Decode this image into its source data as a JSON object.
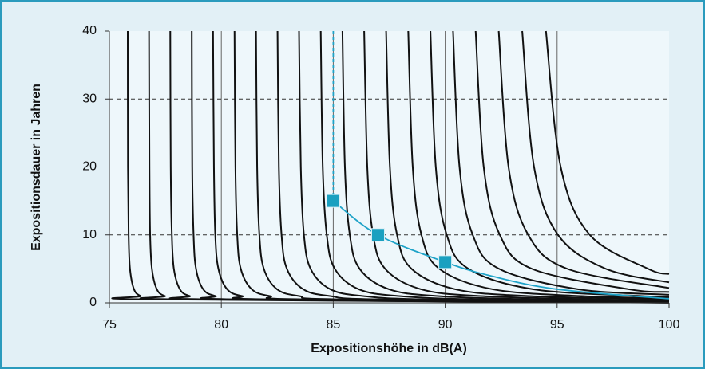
{
  "chart_data": {
    "type": "line",
    "xlabel": "Expositionshöhe in dB(A)",
    "ylabel": "Expositionsdauer in Jahren",
    "xlim": [
      75,
      100
    ],
    "ylim": [
      0,
      40
    ],
    "xticks": [
      75,
      80,
      85,
      90,
      95,
      100
    ],
    "yticks": [
      0,
      10,
      20,
      30,
      40
    ],
    "grid": true,
    "series": [
      {
        "color": "#111111",
        "x": [
          75.82,
          75.83,
          75.86,
          75.92,
          76.1,
          76.4,
          77.0,
          100
        ],
        "values": [
          40,
          20,
          10,
          5,
          2,
          1,
          0.5,
          0.025
        ]
      },
      {
        "color": "#111111",
        "x": [
          76.77,
          76.79,
          76.82,
          76.9,
          77.12,
          77.48,
          78.21,
          100
        ],
        "values": [
          40,
          20,
          10,
          5,
          2,
          1,
          0.5,
          0.031
        ]
      },
      {
        "color": "#111111",
        "x": [
          77.72,
          77.74,
          77.79,
          77.88,
          78.15,
          78.59,
          79.49,
          100
        ],
        "values": [
          40,
          20,
          10,
          5,
          2,
          1,
          0.5,
          0.04
        ]
      },
      {
        "color": "#111111",
        "x": [
          78.68,
          78.7,
          78.76,
          78.87,
          79.19,
          79.74,
          80.83,
          100
        ],
        "values": [
          40,
          20,
          10,
          5,
          2,
          1,
          0.5,
          0.051
        ]
      },
      {
        "color": "#111111",
        "x": [
          79.63,
          79.67,
          79.73,
          79.87,
          80.26,
          80.93,
          82.26,
          100
        ],
        "values": [
          40,
          20,
          10,
          5,
          2,
          1,
          0.5,
          0.065
        ]
      },
      {
        "color": "#111111",
        "x": [
          80.59,
          80.63,
          80.71,
          80.87,
          81.36,
          82.17,
          83.79,
          100
        ],
        "values": [
          40,
          20,
          10,
          5,
          2,
          1,
          0.5,
          0.083
        ]
      },
      {
        "color": "#111111",
        "x": [
          81.55,
          81.6,
          81.7,
          81.9,
          82.49,
          83.48,
          85.45,
          100
        ],
        "values": [
          40,
          20,
          10,
          5,
          2,
          1,
          0.5,
          0.107
        ]
      },
      {
        "color": "#111111",
        "x": [
          82.51,
          82.57,
          82.69,
          82.93,
          83.66,
          84.86,
          87.27,
          100
        ],
        "values": [
          40,
          20,
          10,
          5,
          2,
          1,
          0.5,
          0.137
        ]
      },
      {
        "color": "#111111",
        "x": [
          83.47,
          83.55,
          83.69,
          83.99,
          84.87,
          86.34,
          89.28,
          100
        ],
        "values": [
          40,
          20,
          10,
          5,
          2,
          1,
          0.5,
          0.177
        ]
      },
      {
        "color": "#111111",
        "x": [
          84.44,
          84.53,
          84.71,
          85.07,
          86.14,
          87.94,
          91.52,
          100
        ],
        "values": [
          40,
          20,
          10,
          5,
          2,
          1,
          0.5,
          0.229
        ]
      },
      {
        "color": "#111111",
        "x": [
          85.41,
          85.52,
          85.74,
          86.18,
          87.49,
          89.67,
          94.05,
          100
        ],
        "values": [
          40,
          20,
          10,
          5,
          2,
          1,
          0.5,
          0.297
        ]
      },
      {
        "color": "#111111",
        "x": [
          86.38,
          86.52,
          86.78,
          87.32,
          88.92,
          91.58,
          96.92,
          100
        ],
        "values": [
          40,
          20,
          10,
          5,
          2,
          1,
          0.5,
          0.388
        ]
      },
      {
        "color": "#111111",
        "x": [
          87.36,
          87.53,
          87.85,
          88.5,
          90.45,
          93.71,
          100
        ],
        "values": [
          40,
          20,
          10,
          5,
          2,
          1,
          0.508
        ]
      },
      {
        "color": "#111111",
        "x": [
          88.35,
          88.55,
          88.94,
          89.74,
          92.12,
          96.08,
          100
        ],
        "values": [
          40,
          20,
          10,
          5,
          2,
          1,
          0.67
        ]
      },
      {
        "color": "#111111",
        "x": [
          89.34,
          89.58,
          90.07,
          91.04,
          93.94,
          98.78,
          100
        ],
        "values": [
          40,
          20,
          10,
          5,
          2,
          1,
          0.888
        ]
      },
      {
        "color": "#111111",
        "x": [
          90.35,
          90.64,
          91.23,
          92.41,
          95.95,
          100
        ],
        "values": [
          40,
          20,
          10,
          5,
          2,
          1.186
        ]
      },
      {
        "color": "#111111",
        "x": [
          91.36,
          91.72,
          92.44,
          93.88,
          98.2,
          100
        ],
        "values": [
          40,
          20,
          10,
          5,
          2,
          1.6
        ]
      },
      {
        "color": "#111111",
        "x": [
          92.39,
          92.83,
          93.71,
          95.46,
          100
        ],
        "values": [
          40,
          20,
          10,
          5,
          2.181
        ]
      },
      {
        "color": "#111111",
        "x": [
          93.44,
          93.97,
          95.04,
          97.18,
          100
        ],
        "values": [
          40,
          20,
          10,
          5,
          3.017
        ]
      },
      {
        "color": "#111111",
        "x": [
          94.5,
          95.16,
          96.46,
          99.07,
          100
        ],
        "values": [
          40,
          20,
          10,
          5,
          4.247
        ]
      },
      {
        "color": "#1fa3c8",
        "dashed": true,
        "x": [
          85,
          85
        ],
        "values": [
          40,
          15
        ]
      },
      {
        "color": "#1fa3c8",
        "x": [
          85,
          87,
          90,
          92,
          95,
          100
        ],
        "values": [
          15,
          10,
          6,
          4,
          2,
          0.6
        ]
      }
    ],
    "markers": {
      "color": "#1aa0c0",
      "x": [
        85,
        87,
        90
      ],
      "values": [
        15,
        10,
        6
      ]
    }
  }
}
